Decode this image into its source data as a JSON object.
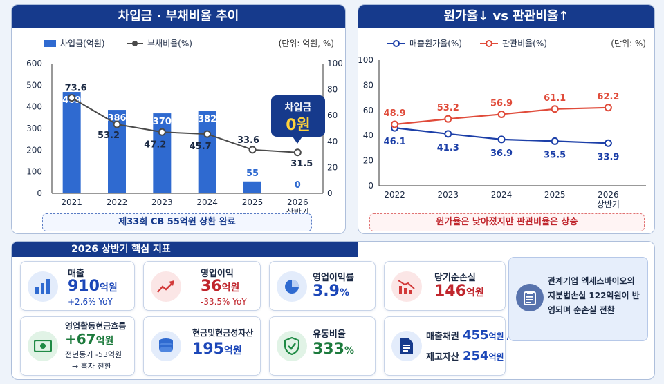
{
  "left_panel": {
    "title": "차입금 · 부채비율 추이",
    "legend_debt": "차입금(억원)",
    "legend_ratio": "부채비율(%)",
    "unit": "(단위: 억원, %)",
    "callout_title": "차입금",
    "callout_value": "0원",
    "note": "제33회 CB 55억원 상환 완료"
  },
  "right_panel": {
    "title": "원가율↓  vs 판관비율↑",
    "legend_cost": "매출원가율(%)",
    "legend_sga": "판관비율(%)",
    "unit": "(단위: %)",
    "note": "원가율은 낮아졌지만 판관비율은 상승"
  },
  "chart_data": [
    {
      "type": "bar",
      "categories": [
        "2021",
        "2022",
        "2023",
        "2024",
        "2025",
        "2026 상반기"
      ],
      "series": [
        {
          "name": "차입금(억원)",
          "type": "bar",
          "axis": "left",
          "values": [
            469,
            386,
            370,
            382,
            55,
            0
          ]
        },
        {
          "name": "부채비율(%)",
          "type": "line",
          "axis": "right",
          "values": [
            73.6,
            53.2,
            47.2,
            45.7,
            33.6,
            31.5
          ]
        }
      ],
      "ylim": [
        0,
        600
      ],
      "y_ticks": [
        0,
        100,
        200,
        300,
        400,
        500,
        600
      ],
      "y2lim": [
        0,
        100
      ],
      "y2_ticks": [
        0,
        20,
        40,
        60,
        80,
        100
      ],
      "legend": "top-left",
      "grid": false,
      "colors": {
        "bar": "#2f6ad0",
        "line": "#4a4a4a"
      }
    },
    {
      "type": "line",
      "categories": [
        "2022",
        "2023",
        "2024",
        "2025",
        "2026 상반기"
      ],
      "series": [
        {
          "name": "매출원가율(%)",
          "values": [
            46.1,
            41.3,
            36.9,
            35.5,
            33.9
          ]
        },
        {
          "name": "판관비율(%)",
          "values": [
            48.9,
            53.2,
            56.9,
            61.1,
            62.2
          ]
        }
      ],
      "ylim": [
        0,
        100
      ],
      "y_ticks": [
        0,
        20,
        40,
        60,
        80,
        100
      ],
      "legend": "top-left",
      "grid": false,
      "colors": {
        "cost": "#1c3fa8",
        "sga": "#e04b3a"
      }
    }
  ],
  "kpi": {
    "section_title": "2026 상반기 핵심 지표",
    "sales": {
      "label": "매출",
      "value": "910",
      "unit": "억원",
      "sub": "+2.6% YoY"
    },
    "op_income": {
      "label": "영업이익",
      "value": "36",
      "unit": "억원",
      "sub": "-33.5% YoY"
    },
    "op_margin": {
      "label": "영업이익률",
      "value": "3.9",
      "unit": "%"
    },
    "net_loss": {
      "label": "당기순손실",
      "value": "146",
      "unit": "억원"
    },
    "ocf": {
      "label": "영업활동현금흐름",
      "value": "+67",
      "unit": "억원",
      "sub1": "전년동기 -53억원",
      "sub2": "→ 흑자 전환"
    },
    "cash": {
      "label": "현금및현금성자산",
      "value": "195",
      "unit": "억원"
    },
    "current_ratio": {
      "label": "유동비율",
      "value": "333",
      "unit": "%"
    },
    "receivables": {
      "label1": "매출채권",
      "value1": "455",
      "unit1": "억원 /",
      "label2": "재고자산",
      "value2": "254",
      "unit2": "억원"
    },
    "memo": "관계기업 엑세스바이오의 지분법손실 122억원이 반영되며 순손실 전환"
  }
}
